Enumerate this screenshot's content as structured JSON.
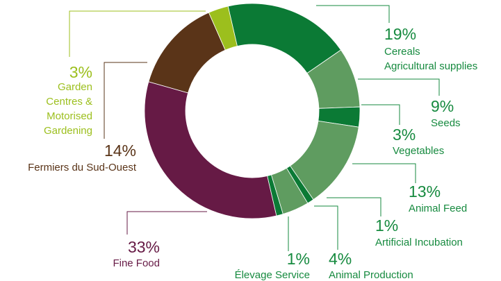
{
  "chart_data": {
    "type": "donut",
    "categories": [
      [
        "Cereals",
        "Agricultural supplies"
      ],
      [
        "Seeds"
      ],
      [
        "Vegetables"
      ],
      [
        "Animal Feed"
      ],
      [
        "Artificial Incubation"
      ],
      [
        "Animal Production"
      ],
      [
        "Élevage Service"
      ],
      [
        "Fine Food"
      ],
      [
        "Fermiers du Sud-Ouest"
      ],
      [
        "Garden",
        "Centres &",
        "Motorised",
        "Gardening"
      ]
    ],
    "values": [
      19,
      9,
      3,
      13,
      1,
      4,
      1,
      33,
      14,
      3
    ],
    "value_labels": [
      "19%",
      "9%",
      "3%",
      "13%",
      "1%",
      "4%",
      "1%",
      "33%",
      "14%",
      "3%"
    ],
    "colors": [
      "#0b7a35",
      "#5f9c60",
      "#0b7a35",
      "#5f9c60",
      "#0b7a35",
      "#5f9c60",
      "#0b7a35",
      "#661a45",
      "#5a3418",
      "#9cbf1d"
    ],
    "label_colors": [
      "#168a3f",
      "#168a3f",
      "#168a3f",
      "#168a3f",
      "#168a3f",
      "#168a3f",
      "#168a3f",
      "#661a45",
      "#5a3418",
      "#9cbf1d"
    ]
  }
}
